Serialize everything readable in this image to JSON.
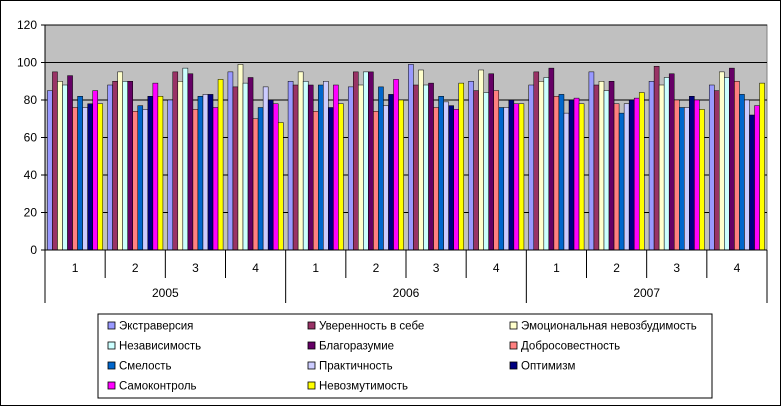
{
  "chart_data": {
    "type": "bar",
    "title": "",
    "xlabel": "",
    "ylabel": "",
    "ylim": [
      0,
      120
    ],
    "yticks": [
      0,
      20,
      40,
      60,
      80,
      100,
      120
    ],
    "grid": "horizontal",
    "legend_position": "bottom",
    "plot_background": "#c0c0c0",
    "categories": [
      {
        "year": "2005",
        "quarter": "1"
      },
      {
        "year": "2005",
        "quarter": "2"
      },
      {
        "year": "2005",
        "quarter": "3"
      },
      {
        "year": "2005",
        "quarter": "4"
      },
      {
        "year": "2006",
        "quarter": "1"
      },
      {
        "year": "2006",
        "quarter": "2"
      },
      {
        "year": "2006",
        "quarter": "3"
      },
      {
        "year": "2006",
        "quarter": "4"
      },
      {
        "year": "2007",
        "quarter": "1"
      },
      {
        "year": "2007",
        "quarter": "2"
      },
      {
        "year": "2007",
        "quarter": "3"
      },
      {
        "year": "2007",
        "quarter": "4"
      }
    ],
    "years": [
      "2005",
      "2006",
      "2007"
    ],
    "series": [
      {
        "name": "Экстраверсия",
        "color": "#9999ff",
        "values": [
          85,
          88,
          80,
          95,
          90,
          87,
          99,
          90,
          88,
          95,
          90,
          88
        ]
      },
      {
        "name": "Уверенность в себе",
        "color": "#993366",
        "values": [
          95,
          90,
          95,
          87,
          88,
          95,
          88,
          85,
          95,
          88,
          98,
          85
        ]
      },
      {
        "name": "Эмоциональная невозбудимость",
        "color": "#ffffcc",
        "values": [
          90,
          95,
          90,
          99,
          95,
          88,
          96,
          96,
          90,
          90,
          88,
          95
        ]
      },
      {
        "name": "Независимость",
        "color": "#ccffff",
        "values": [
          88,
          90,
          97,
          89,
          90,
          95,
          88,
          84,
          92,
          85,
          92,
          92
        ]
      },
      {
        "name": "Благоразумие",
        "color": "#660066",
        "values": [
          93,
          90,
          94,
          92,
          88,
          95,
          89,
          94,
          97,
          90,
          94,
          97
        ]
      },
      {
        "name": "Добросовестность",
        "color": "#ff8080",
        "values": [
          76,
          74,
          75,
          70,
          74,
          74,
          76,
          85,
          82,
          78,
          80,
          90
        ]
      },
      {
        "name": "Смелость",
        "color": "#0066cc",
        "values": [
          82,
          77,
          82,
          76,
          88,
          87,
          82,
          76,
          83,
          73,
          76,
          83
        ]
      },
      {
        "name": "Практичность",
        "color": "#ccccff",
        "values": [
          76,
          75,
          83,
          87,
          90,
          77,
          79,
          76,
          73,
          78,
          76,
          80
        ]
      },
      {
        "name": "Оптимизм",
        "color": "#000080",
        "values": [
          78,
          82,
          83,
          80,
          76,
          83,
          77,
          80,
          80,
          80,
          82,
          72
        ]
      },
      {
        "name": "Самоконтроль",
        "color": "#ff00ff",
        "values": [
          85,
          89,
          76,
          78,
          88,
          91,
          75,
          78,
          81,
          81,
          80,
          77
        ]
      },
      {
        "name": "Невозмутимость",
        "color": "#ffff00",
        "values": [
          78,
          82,
          91,
          68,
          78,
          80,
          89,
          78,
          78,
          84,
          75,
          89
        ]
      }
    ]
  }
}
